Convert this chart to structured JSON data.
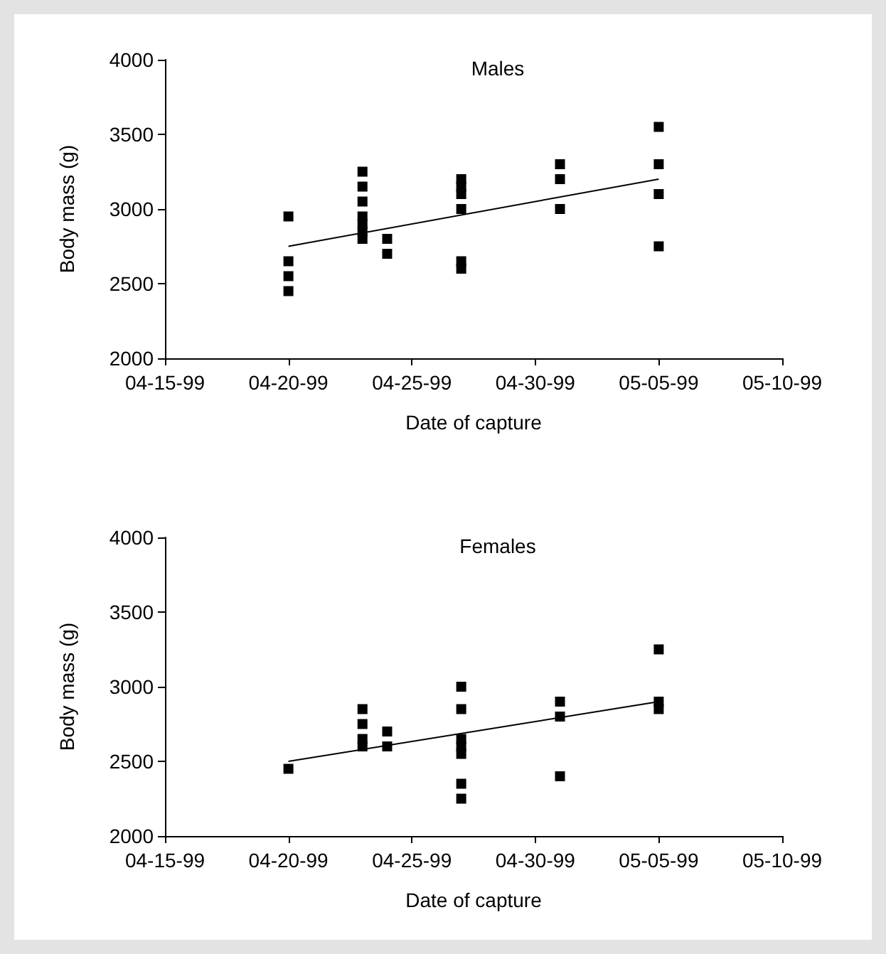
{
  "chart_data": [
    {
      "type": "scatter",
      "title": "Males",
      "xlabel": "Date of capture",
      "ylabel": "Body mass (g)",
      "marker": "square",
      "grid": false,
      "xlim": [
        "1999-04-15",
        "1999-05-10"
      ],
      "xticks": [
        {
          "value": "1999-04-15",
          "label": "04-15-99"
        },
        {
          "value": "1999-04-20",
          "label": "04-20-99"
        },
        {
          "value": "1999-04-25",
          "label": "04-25-99"
        },
        {
          "value": "1999-04-30",
          "label": "04-30-99"
        },
        {
          "value": "1999-05-05",
          "label": "05-05-99"
        },
        {
          "value": "1999-05-10",
          "label": "05-10-99"
        }
      ],
      "ylim": [
        2000,
        4000
      ],
      "yticks": [
        2000,
        2500,
        3000,
        3500,
        4000
      ],
      "series": [
        {
          "color": "#000000",
          "x": [
            "1999-04-20",
            "1999-04-20",
            "1999-04-20",
            "1999-04-20",
            "1999-04-23",
            "1999-04-23",
            "1999-04-23",
            "1999-04-23",
            "1999-04-23",
            "1999-04-23",
            "1999-04-23",
            "1999-04-24",
            "1999-04-24",
            "1999-04-27",
            "1999-04-27",
            "1999-04-27",
            "1999-04-27",
            "1999-04-27",
            "1999-04-27",
            "1999-05-01",
            "1999-05-01",
            "1999-05-01",
            "1999-05-05",
            "1999-05-05",
            "1999-05-05",
            "1999-05-05"
          ],
          "values": [
            2950,
            2650,
            2550,
            2450,
            3250,
            3150,
            3050,
            2950,
            2900,
            2850,
            2800,
            2800,
            2700,
            3200,
            3150,
            3100,
            3000,
            2650,
            2600,
            3300,
            3200,
            3000,
            3550,
            3300,
            3100,
            2750
          ]
        },
        {
          "type": "line",
          "color": "#000000",
          "marker": "none",
          "x": [
            "1999-04-20",
            "1999-05-05"
          ],
          "values": [
            2750,
            3200
          ]
        }
      ]
    },
    {
      "type": "scatter",
      "title": "Females",
      "xlabel": "Date of capture",
      "ylabel": "Body mass (g)",
      "marker": "square",
      "grid": false,
      "xlim": [
        "1999-04-15",
        "1999-05-10"
      ],
      "xticks": [
        {
          "value": "1999-04-15",
          "label": "04-15-99"
        },
        {
          "value": "1999-04-20",
          "label": "04-20-99"
        },
        {
          "value": "1999-04-25",
          "label": "04-25-99"
        },
        {
          "value": "1999-04-30",
          "label": "04-30-99"
        },
        {
          "value": "1999-05-05",
          "label": "05-05-99"
        },
        {
          "value": "1999-05-10",
          "label": "05-10-99"
        }
      ],
      "ylim": [
        2000,
        4000
      ],
      "yticks": [
        2000,
        2500,
        3000,
        3500,
        4000
      ],
      "series": [
        {
          "color": "#000000",
          "x": [
            "1999-04-20",
            "1999-04-23",
            "1999-04-23",
            "1999-04-23",
            "1999-04-23",
            "1999-04-24",
            "1999-04-24",
            "1999-04-27",
            "1999-04-27",
            "1999-04-27",
            "1999-04-27",
            "1999-04-27",
            "1999-04-27",
            "1999-04-27",
            "1999-05-01",
            "1999-05-01",
            "1999-05-01",
            "1999-05-05",
            "1999-05-05",
            "1999-05-05"
          ],
          "values": [
            2450,
            2850,
            2750,
            2650,
            2600,
            2700,
            2600,
            3000,
            2850,
            2650,
            2600,
            2550,
            2350,
            2250,
            2900,
            2800,
            2400,
            3250,
            2900,
            2850
          ]
        },
        {
          "type": "line",
          "color": "#000000",
          "marker": "none",
          "x": [
            "1999-04-20",
            "1999-05-05"
          ],
          "values": [
            2500,
            2900
          ]
        }
      ]
    }
  ]
}
